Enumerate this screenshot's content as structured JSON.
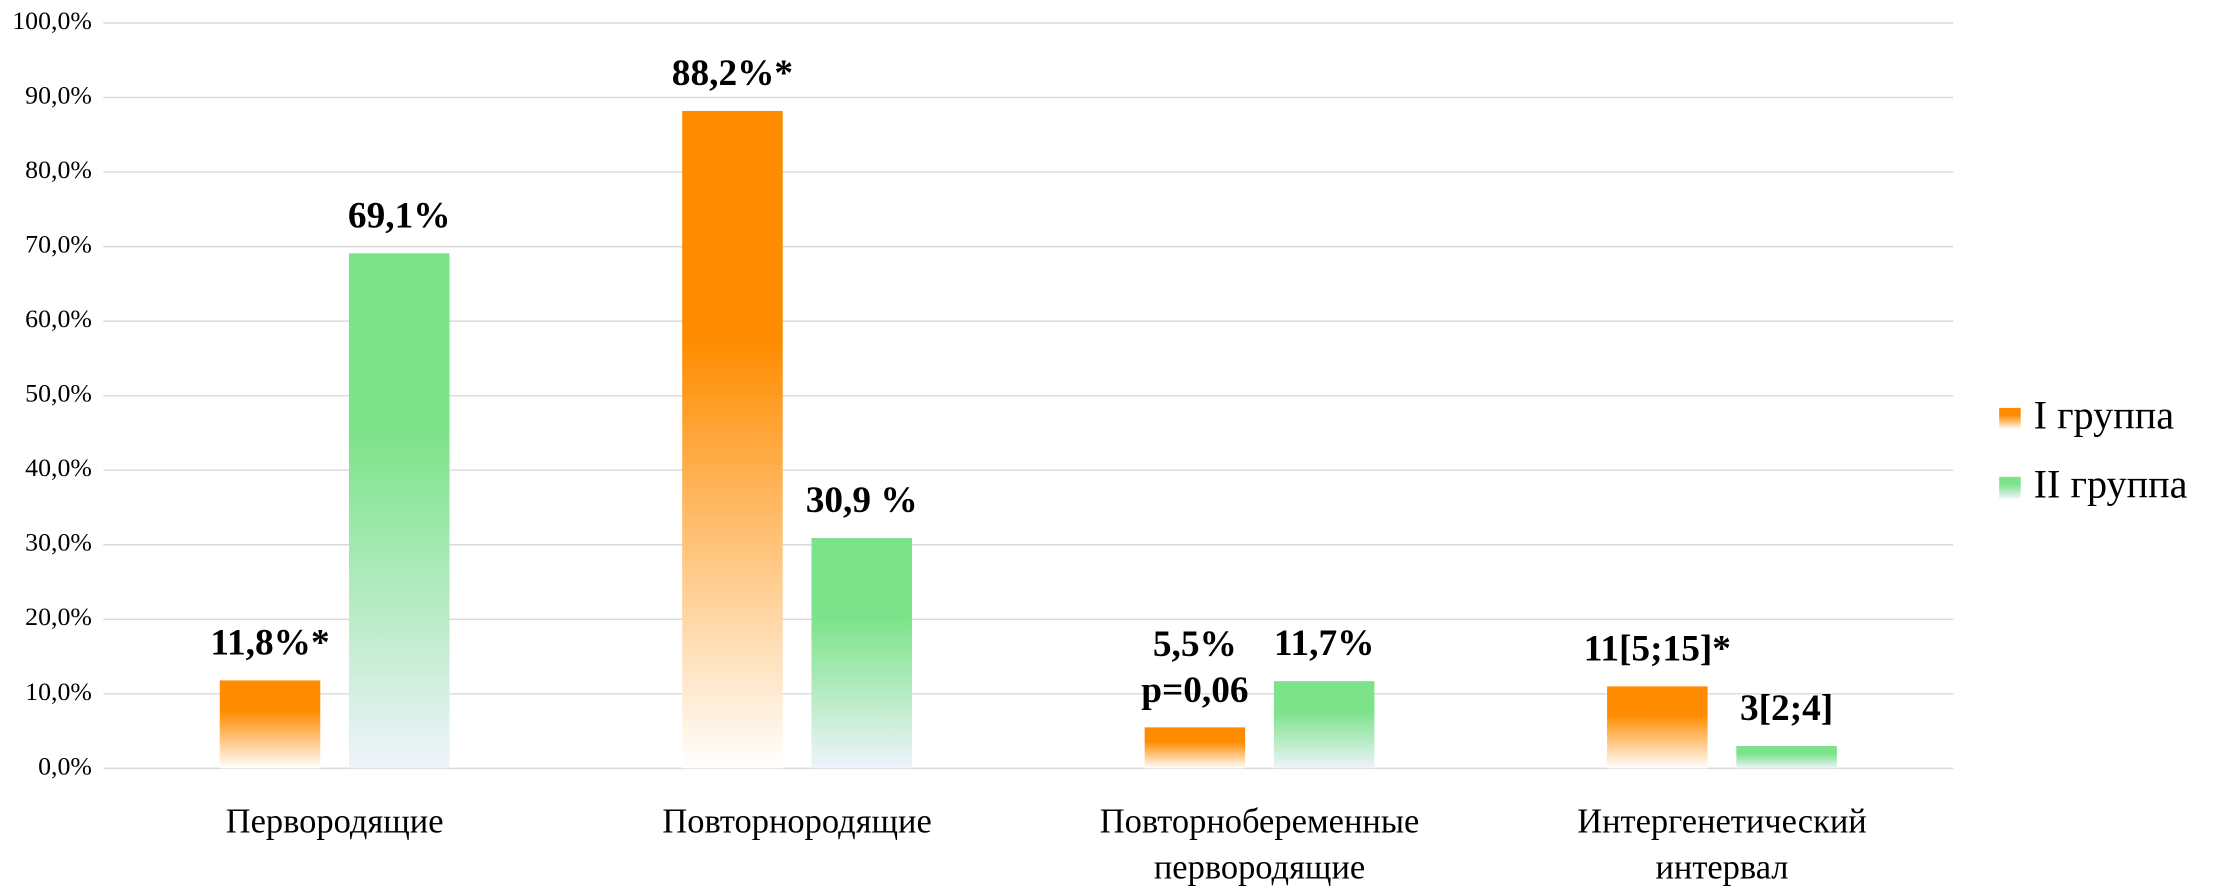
{
  "chart_data": {
    "type": "bar",
    "categories": [
      "Первородящие",
      "Повторнородящие",
      "Повторнобеременные\nпервородящие",
      "Интергенетический\nинтервал"
    ],
    "series": [
      {
        "name": "I группа",
        "color": "#ff8c00",
        "values": [
          11.8,
          88.2,
          5.5,
          11
        ],
        "value_labels": [
          "11,8%*",
          "88,2%*",
          "5,5%\np=0,06",
          "11[5;15]*"
        ]
      },
      {
        "name": "II группа",
        "color": "#7de38a",
        "values": [
          69.1,
          30.9,
          11.7,
          3
        ],
        "value_labels": [
          "69,1%",
          "30,9 %",
          "11,7%",
          "3[2;4]"
        ]
      }
    ],
    "ylim": [
      0,
      100
    ],
    "yticks": [
      {
        "value": 0,
        "label": "0,0%"
      },
      {
        "value": 10,
        "label": "10,0%"
      },
      {
        "value": 20,
        "label": "20,0%"
      },
      {
        "value": 30,
        "label": "30,0%"
      },
      {
        "value": 40,
        "label": "40,0%"
      },
      {
        "value": 50,
        "label": "50,0%"
      },
      {
        "value": 60,
        "label": "60,0%"
      },
      {
        "value": 70,
        "label": "70,0%"
      },
      {
        "value": 80,
        "label": "80,0%"
      },
      {
        "value": 90,
        "label": "90,0%"
      },
      {
        "value": 100,
        "label": "100,0%"
      }
    ],
    "grid": true,
    "legend": "right"
  }
}
